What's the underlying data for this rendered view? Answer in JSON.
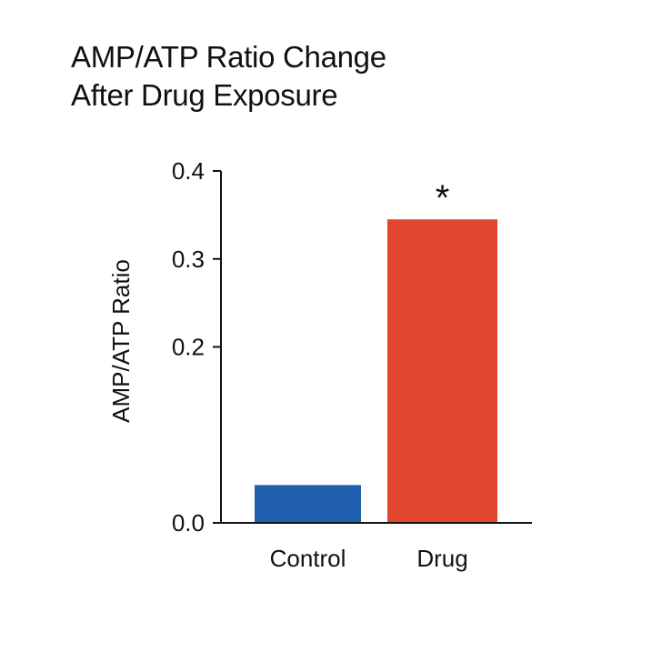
{
  "chart_data": {
    "type": "bar",
    "title_lines": [
      "AMP/ATP Ratio Change",
      "After Drug Exposure"
    ],
    "xlabel": "",
    "ylabel": "AMP/ATP Ratio",
    "categories": [
      "Control",
      "Drug"
    ],
    "values": [
      0.043,
      0.345
    ],
    "colors": [
      "#1f5fae",
      "#e0472e"
    ],
    "ylim": [
      0.0,
      0.4
    ],
    "yticks": [
      0.0,
      0.2,
      0.3,
      0.4
    ],
    "ytick_labels": [
      "0.0",
      "0.2",
      "0.3",
      "0.4"
    ],
    "annotations": [
      {
        "category": "Drug",
        "text": "*"
      }
    ],
    "grid": false,
    "legend": "none"
  }
}
